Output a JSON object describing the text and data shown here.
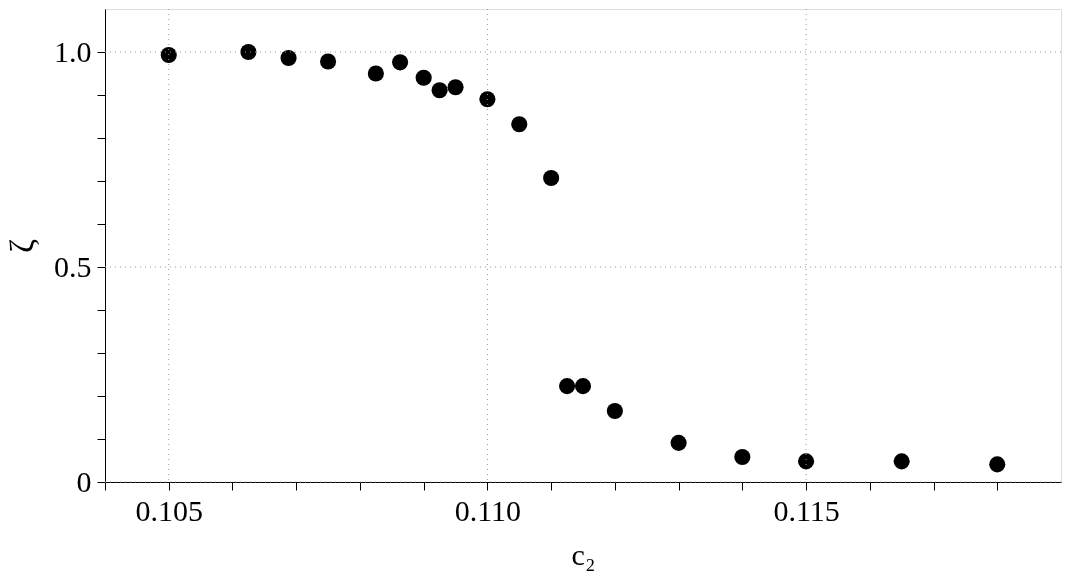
{
  "chart_data": {
    "type": "scatter",
    "xlabel": "c₂",
    "ylabel": "ζ",
    "x": [
      0.105,
      0.10625,
      0.10688,
      0.1075,
      0.10825,
      0.10863,
      0.109,
      0.10925,
      0.1095,
      0.11,
      0.1105,
      0.111,
      0.11125,
      0.1115,
      0.112,
      0.113,
      0.114,
      0.115,
      0.1165,
      0.118
    ],
    "series": [
      {
        "color": "#000000",
        "values": [
          0.993,
          1.0,
          0.986,
          0.978,
          0.95,
          0.976,
          0.94,
          0.911,
          0.918,
          0.89,
          0.832,
          0.707,
          0.223,
          0.223,
          0.165,
          0.091,
          0.058,
          0.048,
          0.048,
          0.041
        ]
      }
    ],
    "xlim": [
      0.104,
      0.119
    ],
    "ylim": [
      0,
      1.1
    ],
    "xticks": [
      {
        "value": 0.104,
        "label": null
      },
      0.105,
      {
        "value": 0.106,
        "label": null
      },
      {
        "value": 0.107,
        "label": null
      },
      {
        "value": 0.108,
        "label": null
      },
      {
        "value": 0.109,
        "label": null
      },
      {
        "value": 0.11,
        "label": "0.110"
      },
      {
        "value": 0.111,
        "label": null
      },
      {
        "value": 0.112,
        "label": null
      },
      {
        "value": 0.113,
        "label": null
      },
      {
        "value": 0.114,
        "label": null
      },
      0.115,
      {
        "value": 0.116,
        "label": null
      },
      {
        "value": 0.117,
        "label": null
      },
      {
        "value": 0.118,
        "label": null
      }
    ],
    "yticks": [
      0,
      {
        "value": 0.1,
        "label": null
      },
      {
        "value": 0.2,
        "label": null
      },
      {
        "value": 0.3,
        "label": null
      },
      {
        "value": 0.4,
        "label": null
      },
      0.5,
      {
        "value": 0.6,
        "label": null
      },
      {
        "value": 0.7,
        "label": null
      },
      {
        "value": 0.8,
        "label": null
      },
      {
        "value": 0.9,
        "label": null
      },
      {
        "value": 1.0,
        "label": "1.0"
      }
    ],
    "grid": true,
    "marker": "circle"
  }
}
